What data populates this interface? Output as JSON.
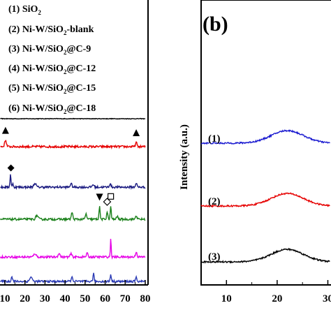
{
  "chart_data": [
    {
      "panel": "a",
      "type": "line",
      "xlim": [
        0,
        80
      ],
      "x_ticks": [
        10,
        20,
        30,
        40,
        50,
        60,
        70,
        80
      ],
      "x_tick_labels": [
        "10",
        "20",
        "30",
        "40",
        "50",
        "60",
        "70",
        "80"
      ],
      "grid": false,
      "legend_position": "top",
      "series": [
        {
          "name": "(1) SiO",
          "name_sub": "2",
          "name_tail": "",
          "color": "#000000",
          "baseline": 0.0
        },
        {
          "name": "(2) Ni-W/SiO",
          "name_sub": "2",
          "name_tail": "-blank",
          "color": "#e60000",
          "baseline": 0.0,
          "peaks": [
            [
              10.3,
              0.85,
              0.6
            ],
            [
              75.5,
              0.55,
              0.5
            ]
          ]
        },
        {
          "name": "(3) Ni-W/SiO",
          "name_sub": "2",
          "name_tail": "@C-9",
          "color": "#1a1a80",
          "baseline": 0.0,
          "peaks": [
            [
              12.8,
              1.7,
              0.35
            ],
            [
              14.0,
              0.4,
              0.4
            ],
            [
              25.0,
              0.5,
              0.8
            ],
            [
              43.0,
              0.45,
              0.6
            ],
            [
              54.0,
              0.35,
              0.6
            ],
            [
              62.5,
              0.4,
              0.6
            ],
            [
              75.5,
              0.55,
              0.5
            ]
          ]
        },
        {
          "name": "(4) Ni-W/SiO",
          "name_sub": "2",
          "name_tail": "@C-12",
          "color": "#1a801a",
          "baseline": 0.0,
          "peaks": [
            [
              26.0,
              0.5,
              0.8
            ],
            [
              43.5,
              0.9,
              0.5
            ],
            [
              50.5,
              0.7,
              0.5
            ],
            [
              57.2,
              1.6,
              0.4
            ],
            [
              61.0,
              1.0,
              0.4
            ],
            [
              62.8,
              1.7,
              0.35
            ],
            [
              66.0,
              0.4,
              0.5
            ],
            [
              75.5,
              0.5,
              0.5
            ]
          ]
        },
        {
          "name": "(5) Ni-W/SiO",
          "name_sub": "2",
          "name_tail": "@C-15",
          "color": "#e600e6",
          "baseline": 0.0,
          "peaks": [
            [
              25.0,
              0.45,
              0.8
            ],
            [
              37.0,
              0.5,
              0.6
            ],
            [
              43.0,
              0.4,
              0.6
            ],
            [
              51.0,
              0.5,
              0.5
            ],
            [
              62.8,
              2.3,
              0.3
            ],
            [
              75.5,
              0.7,
              0.5
            ]
          ]
        },
        {
          "name": "(6) Ni-W/SiO",
          "name_sub": "2",
          "name_tail": "@C-18",
          "color": "#2a3ab4",
          "baseline": 0.0,
          "peaks": [
            [
              13.5,
              0.6,
              0.5
            ],
            [
              23.0,
              0.6,
              0.8
            ],
            [
              43.5,
              0.5,
              0.6
            ],
            [
              54.2,
              1.0,
              0.4
            ],
            [
              62.8,
              0.9,
              0.4
            ],
            [
              75.5,
              0.5,
              0.5
            ]
          ]
        }
      ],
      "markers": [
        {
          "symbol": "filled-triangle-up",
          "x": 10.3,
          "series": 1
        },
        {
          "symbol": "filled-triangle-up",
          "x": 75.5,
          "series": 1
        },
        {
          "symbol": "filled-diamond",
          "x": 13.0,
          "series": 2
        },
        {
          "symbol": "filled-triangle-down",
          "x": 57.2,
          "series": 3
        },
        {
          "symbol": "open-diamond",
          "x": 61.0,
          "series": 3
        },
        {
          "symbol": "open-square",
          "x": 62.8,
          "series": 3
        }
      ]
    },
    {
      "panel": "b",
      "type": "line",
      "panel_label": "(b)",
      "ylabel": "Intensity (a.u.)",
      "xlim": [
        5,
        32
      ],
      "x_ticks": [
        10,
        20,
        30
      ],
      "x_tick_labels": [
        "10",
        "20",
        "30"
      ],
      "grid": false,
      "series": [
        {
          "label": "(1)",
          "color": "#1a1ad0",
          "hump_center": 22.0,
          "hump_height": 1.0
        },
        {
          "label": "(2)",
          "color": "#e60000",
          "hump_center": 22.0,
          "hump_height": 1.0
        },
        {
          "label": "(3)",
          "color": "#000000",
          "hump_center": 22.0,
          "hump_height": 1.0
        }
      ]
    }
  ]
}
